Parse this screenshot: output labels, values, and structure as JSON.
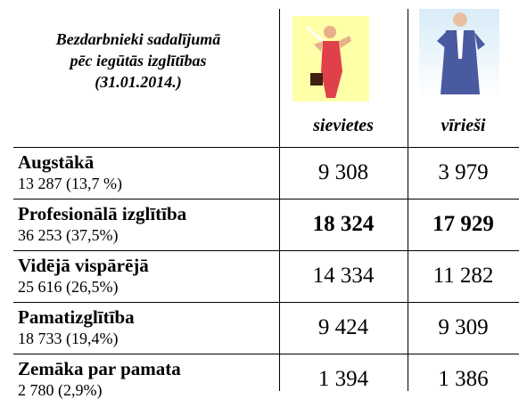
{
  "header": {
    "title": [
      "Bezdarbnieki sadalījumā",
      "pēc iegūtās izglītības",
      "(31.01.2014.)"
    ],
    "columns": [
      "sievietes",
      "vīrieši"
    ]
  },
  "table": {
    "rows": [
      {
        "label": "Augstākā",
        "share": "13 287 (13,7 %)",
        "values": [
          "9 308",
          "3 979"
        ]
      },
      {
        "label": "Profesionālā izglītība",
        "share": "36 253 (37,5%)",
        "values": [
          "18 324",
          "17 929"
        ]
      },
      {
        "label": "Vidējā vispārējā",
        "share": "25 616 (26,5%)",
        "values": [
          "14 334",
          "11 282"
        ]
      },
      {
        "label": "Pamatizglītība",
        "share": "18 733 (19,4%)",
        "values": [
          "9 424",
          "9 309"
        ]
      },
      {
        "label": "Zemāka par pamata",
        "share": "2 780 (2,9%)",
        "values": [
          "1 394",
          "1 386"
        ]
      }
    ]
  }
}
